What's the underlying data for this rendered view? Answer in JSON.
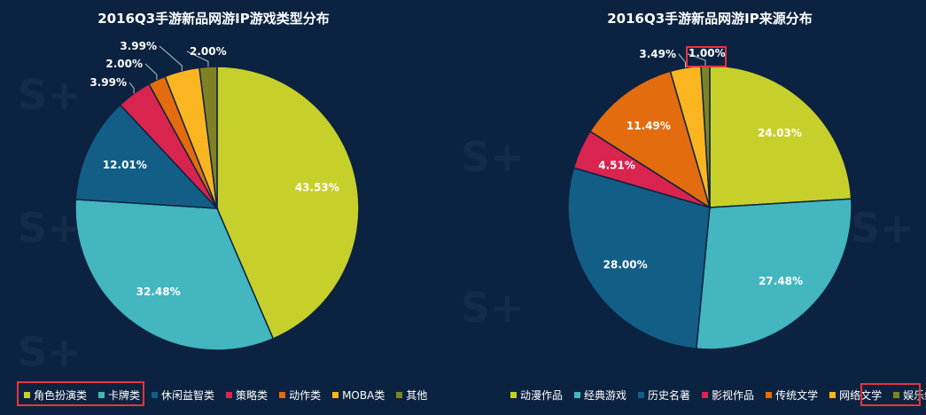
{
  "chart_data": [
    {
      "type": "pie",
      "title": "2016Q3手游新品网游IP游戏类型分布",
      "slices": [
        {
          "name": "角色扮演类",
          "value": 43.53,
          "label": "43.53%",
          "color": "#c7d02b"
        },
        {
          "name": "卡牌类",
          "value": 32.48,
          "label": "32.48%",
          "color": "#43b6c0"
        },
        {
          "name": "休闲益智类",
          "value": 12.01,
          "label": "12.01%",
          "color": "#135e87"
        },
        {
          "name": "策略类",
          "value": 3.99,
          "label": "3.99%",
          "color": "#d9244f"
        },
        {
          "name": "动作类",
          "value": 2.0,
          "label": "2.00%",
          "color": "#e36c0e"
        },
        {
          "name": "MOBA类",
          "value": 3.99,
          "label": "3.99%",
          "color": "#fbb521"
        },
        {
          "name": "其他",
          "value": 2.0,
          "label": "2.00%",
          "color": "#7f8224"
        }
      ],
      "legend_position": "bottom",
      "highlighted_legend": [
        "角色扮演类",
        "卡牌类"
      ]
    },
    {
      "type": "pie",
      "title": "2016Q3手游新品网游IP来源分布",
      "slices": [
        {
          "name": "动漫作品",
          "value": 24.03,
          "label": "24.03%",
          "color": "#c7d02b"
        },
        {
          "name": "经典游戏",
          "value": 27.48,
          "label": "27.48%",
          "color": "#43b6c0"
        },
        {
          "name": "历史名著",
          "value": 28.0,
          "label": "28.00%",
          "color": "#135e87"
        },
        {
          "name": "影视作品",
          "value": 4.51,
          "label": "4.51%",
          "color": "#d9244f"
        },
        {
          "name": "传统文学",
          "value": 11.49,
          "label": "11.49%",
          "color": "#e36c0e"
        },
        {
          "name": "网络文学",
          "value": 3.49,
          "label": "3.49%",
          "color": "#fbb521"
        },
        {
          "name": "娱乐综艺",
          "value": 1.0,
          "label": "1.00%",
          "color": "#7f8224"
        }
      ],
      "legend_position": "bottom",
      "highlighted_legend": [
        "娱乐综艺"
      ],
      "highlighted_labels": [
        "1.00%"
      ]
    }
  ]
}
